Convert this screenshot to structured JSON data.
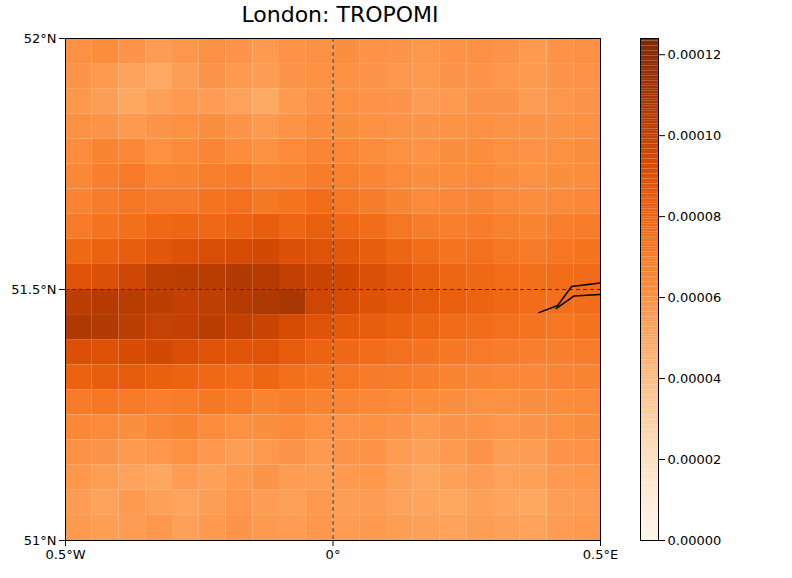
{
  "chart_data": {
    "type": "heatmap",
    "title": "London: TROPOMI",
    "xlim": [
      -0.5,
      0.5
    ],
    "ylim": [
      51,
      52
    ],
    "xticks": [
      {
        "value": -0.5,
        "label": "0.5°W"
      },
      {
        "value": 0,
        "label": "0°"
      },
      {
        "value": 0.5,
        "label": "0.5°E"
      }
    ],
    "yticks": [
      {
        "value": 51,
        "label": "51°N"
      },
      {
        "value": 51.5,
        "label": "51.5°N"
      },
      {
        "value": 52,
        "label": "52°N"
      }
    ],
    "grid": true,
    "xbins": [
      -0.5,
      -0.45,
      -0.4,
      -0.35,
      -0.3,
      -0.25,
      -0.2,
      -0.15,
      -0.1,
      -0.05,
      0,
      0.05,
      0.1,
      0.15,
      0.2,
      0.25,
      0.3,
      0.35,
      0.4,
      0.45,
      0.5
    ],
    "ybins": [
      52,
      51.95,
      51.9,
      51.85,
      51.8,
      51.75,
      51.7,
      51.65,
      51.6,
      51.55,
      51.5,
      51.45,
      51.4,
      51.35,
      51.3,
      51.25,
      51.2,
      51.15,
      51.1,
      51.05,
      51
    ],
    "cells": [
      [
        6e-05,
        6.2e-05,
        5.8e-05,
        5.5e-05,
        5.7e-05,
        6e-05,
        5.8e-05,
        5.6e-05,
        5.9e-05,
        6e-05,
        6.1e-05,
        5.9e-05,
        5.8e-05,
        5.7e-05,
        5.9e-05,
        6e-05,
        5.8e-05,
        5.6e-05,
        5.9e-05,
        6e-05
      ],
      [
        5.8e-05,
        5.6e-05,
        5.2e-05,
        4.9e-05,
        5.4e-05,
        5.8e-05,
        5.6e-05,
        5.5e-05,
        5.8e-05,
        6e-05,
        6e-05,
        5.8e-05,
        5.7e-05,
        5.6e-05,
        5.8e-05,
        5.9e-05,
        5.7e-05,
        5.6e-05,
        5.8e-05,
        5.9e-05
      ],
      [
        5.7e-05,
        5.4e-05,
        5e-05,
        5.3e-05,
        5.6e-05,
        5.5e-05,
        5.2e-05,
        4.9e-05,
        5.6e-05,
        5.9e-05,
        6e-05,
        5.9e-05,
        5.8e-05,
        5.5e-05,
        5.6e-05,
        5.8e-05,
        5.8e-05,
        5.5e-05,
        5.7e-05,
        5.8e-05
      ],
      [
        6e-05,
        5.8e-05,
        5.6e-05,
        5.8e-05,
        6e-05,
        6.1e-05,
        5.8e-05,
        5.6e-05,
        5.9e-05,
        6.2e-05,
        6.1e-05,
        6e-05,
        5.9e-05,
        5.8e-05,
        5.9e-05,
        6e-05,
        5.9e-05,
        5.8e-05,
        5.9e-05,
        6e-05
      ],
      [
        6.2e-05,
        6.6e-05,
        6.4e-05,
        6e-05,
        6.3e-05,
        6.5e-05,
        6.2e-05,
        6e-05,
        6.3e-05,
        6.5e-05,
        6.4e-05,
        6.2e-05,
        6e-05,
        5.9e-05,
        6.1e-05,
        6.2e-05,
        6e-05,
        5.9e-05,
        6e-05,
        6.1e-05
      ],
      [
        6.4e-05,
        6.8e-05,
        7e-05,
        6.5e-05,
        6.6e-05,
        6.8e-05,
        6.9e-05,
        6.5e-05,
        6.6e-05,
        6.9e-05,
        6.7e-05,
        6.5e-05,
        6.3e-05,
        6.1e-05,
        6.2e-05,
        6.3e-05,
        6.1e-05,
        6e-05,
        6.1e-05,
        6.2e-05
      ],
      [
        6.6e-05,
        6.9e-05,
        7.2e-05,
        7e-05,
        7e-05,
        7.3e-05,
        7.4e-05,
        7.1e-05,
        7.3e-05,
        7.6e-05,
        7.2e-05,
        6.9e-05,
        6.6e-05,
        6.3e-05,
        6.4e-05,
        6.5e-05,
        6.3e-05,
        6.2e-05,
        6.3e-05,
        6.4e-05
      ],
      [
        7e-05,
        7.3e-05,
        7.5e-05,
        7.8e-05,
        7.9e-05,
        7.8e-05,
        8e-05,
        8.3e-05,
        7.9e-05,
        8.2e-05,
        7.8e-05,
        7.6e-05,
        7.2e-05,
        6.9e-05,
        6.8e-05,
        6.9e-05,
        6.7e-05,
        6.6e-05,
        6.8e-05,
        6.9e-05
      ],
      [
        7.8e-05,
        8.1e-05,
        8.3e-05,
        8.6e-05,
        8.9e-05,
        9.1e-05,
        9.3e-05,
        9.4e-05,
        9e-05,
        8.8e-05,
        8.6e-05,
        8.3e-05,
        7.9e-05,
        7.6e-05,
        7.3e-05,
        7.4e-05,
        7.2e-05,
        7e-05,
        7.2e-05,
        7.3e-05
      ],
      [
        8.8e-05,
        9e-05,
        9.6e-05,
        0.000101,
        0.000102,
        0.000103,
        0.000105,
        0.000104,
        0.0001,
        9.7e-05,
        9.4e-05,
        9e-05,
        8.6e-05,
        8.2e-05,
        7.9e-05,
        7.8e-05,
        7.6e-05,
        7.5e-05,
        7.6e-05,
        7.7e-05
      ],
      [
        0.000102,
        0.000104,
        0.000103,
        0.000102,
        0.0001,
        0.000101,
        0.000104,
        0.000106,
        0.000108,
        9.6e-05,
        9.2e-05,
        8.9e-05,
        8.6e-05,
        8.4e-05,
        8.2e-05,
        8e-05,
        7.8e-05,
        7.6e-05,
        7.5e-05,
        7.6e-05
      ],
      [
        0.000106,
        0.000105,
        0.000102,
        9.9e-05,
        0.0001,
        0.000103,
        0.0001,
        9.7e-05,
        9.2e-05,
        8.8e-05,
        8.5e-05,
        8.3e-05,
        8.1e-05,
        7.9e-05,
        7.7e-05,
        7.6e-05,
        7.4e-05,
        7.3e-05,
        7.2e-05,
        7.3e-05
      ],
      [
        9e-05,
        8.9e-05,
        9.2e-05,
        9.4e-05,
        9.1e-05,
        8.8e-05,
        8.7e-05,
        8.8e-05,
        8.4e-05,
        8e-05,
        7.8e-05,
        7.6e-05,
        7.4e-05,
        7.3e-05,
        7.1e-05,
        7e-05,
        6.9e-05,
        6.8e-05,
        6.8e-05,
        6.9e-05
      ],
      [
        8.1e-05,
        8.3e-05,
        8.4e-05,
        8.2e-05,
        8e-05,
        7.8e-05,
        7.6e-05,
        7.9e-05,
        7.5e-05,
        7.3e-05,
        7.2e-05,
        7e-05,
        6.9e-05,
        6.8e-05,
        6.6e-05,
        6.5e-05,
        6.4e-05,
        6.4e-05,
        6.5e-05,
        6.6e-05
      ],
      [
        7e-05,
        7.2e-05,
        7e-05,
        6.8e-05,
        6.9e-05,
        7.1e-05,
        6.9e-05,
        6.6e-05,
        6.8e-05,
        6.6e-05,
        6.5e-05,
        6.4e-05,
        6.3e-05,
        6.2e-05,
        6.1e-05,
        6e-05,
        6e-05,
        6.1e-05,
        6.2e-05,
        6.3e-05
      ],
      [
        6.4e-05,
        6.3e-05,
        6.1e-05,
        6.4e-05,
        6.6e-05,
        6.2e-05,
        6e-05,
        6.1e-05,
        6.3e-05,
        6e-05,
        5.9e-05,
        6e-05,
        5.8e-05,
        5.6e-05,
        5.8e-05,
        5.9e-05,
        5.7e-05,
        5.8e-05,
        6e-05,
        6.1e-05
      ],
      [
        6e-05,
        5.8e-05,
        5.6e-05,
        5.7e-05,
        6e-05,
        5.7e-05,
        5.4e-05,
        5.6e-05,
        5.8e-05,
        5.6e-05,
        5.8e-05,
        5.9e-05,
        5.5e-05,
        5.3e-05,
        5.6e-05,
        5.8e-05,
        5.4e-05,
        5.5e-05,
        5.8e-05,
        5.9e-05
      ],
      [
        5.7e-05,
        5.4e-05,
        5.2e-05,
        5e-05,
        5.5e-05,
        5.3e-05,
        5.6e-05,
        5.8e-05,
        5.5e-05,
        5.4e-05,
        5.6e-05,
        5.7e-05,
        5.3e-05,
        5e-05,
        5.3e-05,
        5.5e-05,
        5.2e-05,
        5.3e-05,
        5.6e-05,
        5.7e-05
      ],
      [
        5.5e-05,
        5.2e-05,
        5.6e-05,
        5.3e-05,
        5.1e-05,
        5.4e-05,
        5.7e-05,
        5.5e-05,
        5.3e-05,
        5.6e-05,
        5.4e-05,
        5.5e-05,
        5.2e-05,
        5.1e-05,
        5e-05,
        5.3e-05,
        5.1e-05,
        5e-05,
        5.4e-05,
        5.5e-05
      ],
      [
        5.6e-05,
        5.4e-05,
        5.5e-05,
        5.7e-05,
        5.3e-05,
        5.6e-05,
        5.8e-05,
        5.6e-05,
        5.5e-05,
        5.7e-05,
        5.5e-05,
        5.6e-05,
        5.4e-05,
        5.3e-05,
        5.2e-05,
        5.4e-05,
        5.3e-05,
        5.2e-05,
        5.5e-05,
        5.6e-05
      ]
    ],
    "colorbar_lim": [
      0,
      0.000124
    ],
    "colorbar_ticks": [
      {
        "value": 0,
        "label": "0.00000"
      },
      {
        "value": 2e-05,
        "label": "0.00002"
      },
      {
        "value": 4e-05,
        "label": "0.00004"
      },
      {
        "value": 6e-05,
        "label": "0.00006"
      },
      {
        "value": 8e-05,
        "label": "0.00008"
      },
      {
        "value": 0.0001,
        "label": "0.00010"
      },
      {
        "value": 0.00012,
        "label": "0.00012"
      }
    ],
    "coastlines": [
      [
        [
          0.385,
          51.454
        ],
        [
          0.42,
          51.468
        ],
        [
          0.446,
          51.506
        ],
        [
          0.5,
          51.513
        ]
      ],
      [
        [
          0.417,
          51.462
        ],
        [
          0.45,
          51.487
        ],
        [
          0.5,
          51.49
        ]
      ]
    ]
  }
}
